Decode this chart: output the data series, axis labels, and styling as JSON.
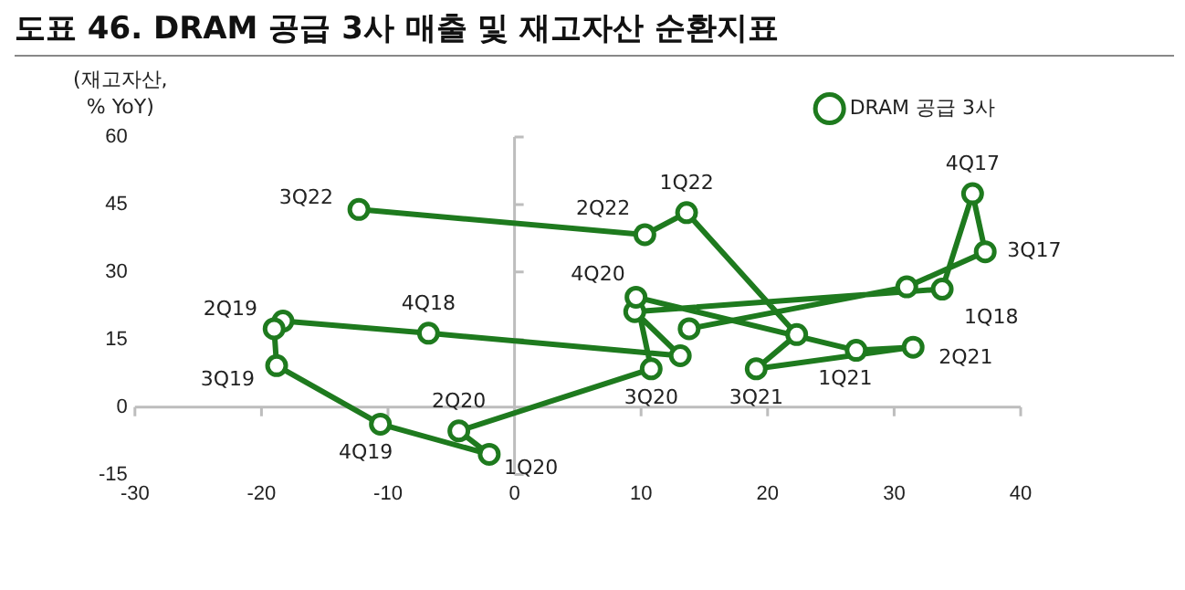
{
  "chart_data": {
    "type": "line",
    "title": "도표 46. DRAM 공급 3사 매출 및 재고자산 순환지표",
    "ylabel": "(재고자산,\n% YoY)",
    "x": [
      13.8,
      31.0,
      37.2,
      36.2,
      33.8,
      9.5,
      13.1,
      -6.8,
      -18.3,
      -19.0,
      -18.8,
      -10.6,
      -2.0,
      -4.4,
      10.8,
      9.6,
      27.0,
      31.5,
      19.1,
      22.3,
      13.6,
      10.3,
      -12.3
    ],
    "series": [
      {
        "name": "DRAM 공급 3사",
        "color": "#1e7a1e",
        "values": [
          17.4,
          26.7,
          34.5,
          47.4,
          26.2,
          21.2,
          11.4,
          16.4,
          19.1,
          17.4,
          9.2,
          -3.8,
          -10.5,
          -5.3,
          8.5,
          24.4,
          12.6,
          13.3,
          8.5,
          16.1,
          43.2,
          38.3,
          43.9
        ]
      }
    ],
    "xlim": [
      -30,
      40
    ],
    "xticks": [
      -30,
      -20,
      -10,
      0,
      10,
      20,
      30,
      40
    ],
    "ylim": [
      -15,
      60
    ],
    "yticks": [
      -15,
      0,
      15,
      30,
      45,
      60
    ],
    "legend": "top right",
    "marker": "circle",
    "line_style": "solid",
    "annotations": [
      {
        "text": "4Q17",
        "x": 36.2,
        "y": 47.4
      },
      {
        "text": "3Q17",
        "x": 37.2,
        "y": 34.5
      },
      {
        "text": "1Q18",
        "x": 33.8,
        "y": 26.2
      },
      {
        "text": "1Q22",
        "x": 13.6,
        "y": 43.2
      },
      {
        "text": "2Q22",
        "x": 10.3,
        "y": 38.3
      },
      {
        "text": "3Q22",
        "x": -12.3,
        "y": 43.9
      },
      {
        "text": "4Q20",
        "x": 9.6,
        "y": 24.4
      },
      {
        "text": "2Q19",
        "x": -18.3,
        "y": 19.1
      },
      {
        "text": "4Q18",
        "x": -6.8,
        "y": 16.4
      },
      {
        "text": "3Q19",
        "x": -18.8,
        "y": 9.2
      },
      {
        "text": "2Q20",
        "x": -4.4,
        "y": -5.3
      },
      {
        "text": "4Q19",
        "x": -10.6,
        "y": -3.8
      },
      {
        "text": "1Q20",
        "x": -2.0,
        "y": -10.5
      },
      {
        "text": "3Q20",
        "x": 10.8,
        "y": 8.5
      },
      {
        "text": "3Q21",
        "x": 19.1,
        "y": 8.5
      },
      {
        "text": "1Q21",
        "x": 27.0,
        "y": 12.6
      },
      {
        "text": "2Q21",
        "x": 31.5,
        "y": 13.3
      }
    ]
  }
}
